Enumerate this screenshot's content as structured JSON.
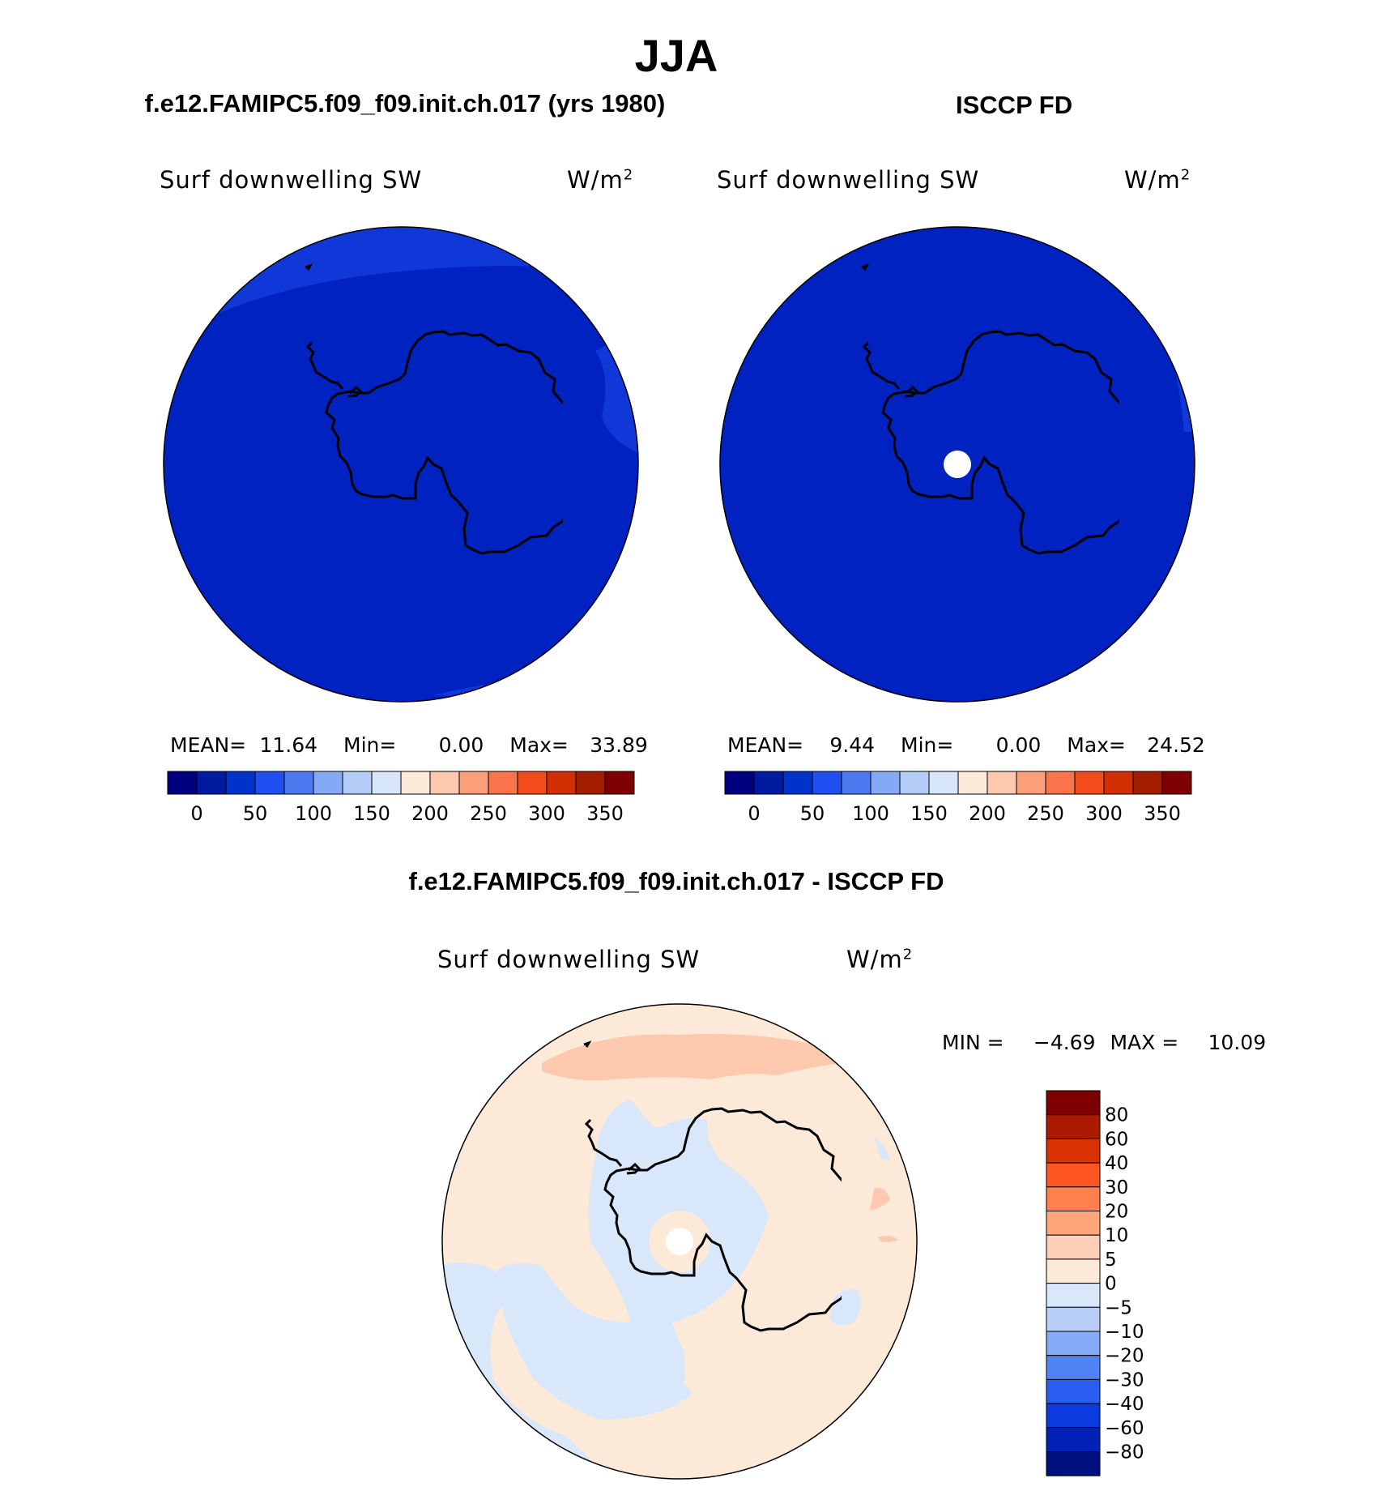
{
  "title": "JJA",
  "panels": [
    {
      "id": "model",
      "title": "f.e12.FAMIPC5.f09_f09.init.ch.017 (yrs 1980)",
      "variable": "Surf downwelling SW",
      "units_base": "W/m",
      "units_sup": "2",
      "mean_label": "MEAN=",
      "mean": "11.64",
      "min_label": "Min=",
      "min": "0.00",
      "max_label": "Max=",
      "max": "33.89"
    },
    {
      "id": "obs",
      "title": "ISCCP FD",
      "variable": "Surf downwelling SW",
      "units_base": "W/m",
      "units_sup": "2",
      "mean_label": "MEAN=",
      "mean": "9.44",
      "min_label": "Min=",
      "min": "0.00",
      "max_label": "Max=",
      "max": "24.52"
    }
  ],
  "abs_colorbar": {
    "colors": [
      "#00007f",
      "#001aa0",
      "#0033cc",
      "#1f4ff0",
      "#4a79f0",
      "#86a9f5",
      "#b3cbf7",
      "#d8e6fa",
      "#fde9d8",
      "#fcc8ae",
      "#fa9f79",
      "#f8744a",
      "#f24c1c",
      "#d32f05",
      "#a51c00",
      "#7f0000"
    ],
    "tick_labels": [
      "0",
      "50",
      "100",
      "150",
      "200",
      "250",
      "300",
      "350"
    ]
  },
  "diff_panel": {
    "title": "f.e12.FAMIPC5.f09_f09.init.ch.017 - ISCCP FD",
    "variable": "Surf downwelling SW",
    "units_base": "W/m",
    "units_sup": "2",
    "min_label": "MIN =",
    "min": "−4.69",
    "max_label": "MAX =",
    "max": "10.09"
  },
  "diff_colorbar": {
    "colors": [
      "#7f0000",
      "#ac1b00",
      "#d83200",
      "#ff5522",
      "#ff7f4d",
      "#ffa77a",
      "#fdd0b8",
      "#fde9d8",
      "#d8e8fa",
      "#b8cff8",
      "#87aaf6",
      "#5083f4",
      "#2a5ef0",
      "#0a3ae0",
      "#0022b8",
      "#00107f"
    ],
    "tick_labels": [
      "80",
      "60",
      "40",
      "30",
      "20",
      "10",
      "5",
      "0",
      "−5",
      "−10",
      "−20",
      "−30",
      "−40",
      "−60",
      "−80"
    ]
  },
  "map_colors": {
    "land_line": "#000000",
    "model_base": "#0022c0",
    "model_light": "#1038d8",
    "obs_base": "#0022c0",
    "obs_light": "#1038d8",
    "diff_pos": "#fde9d8",
    "diff_pos_strong": "#fcc8ae",
    "diff_neg": "#d8e8fa",
    "missing": "#ffffff"
  }
}
